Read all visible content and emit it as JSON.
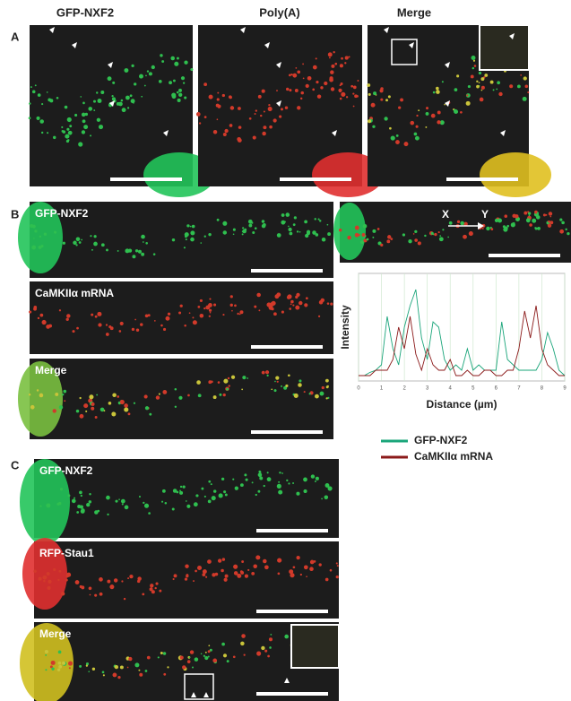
{
  "panels": [
    {
      "label": "A",
      "columns": [
        "GFP-NXF2",
        "Poly(A)",
        "Merge"
      ]
    },
    {
      "label": "B",
      "images": [
        "GFP-NXF2",
        "CaMKIIα mRNA",
        "Merge"
      ],
      "arrow_start": "X",
      "arrow_end": "Y",
      "chart_data": {
        "type": "line",
        "xlabel": "Distance (µm)",
        "ylabel": "Intensity",
        "x": [
          0,
          0.25,
          0.5,
          0.75,
          1,
          1.25,
          1.5,
          1.75,
          2,
          2.25,
          2.5,
          2.75,
          3,
          3.25,
          3.5,
          3.75,
          4,
          4.25,
          4.5,
          4.75,
          5,
          5.25,
          5.5,
          5.75,
          6,
          6.25,
          6.5,
          6.75,
          7,
          7.25,
          7.5,
          7.75,
          8,
          8.25,
          8.5,
          8.75,
          9
        ],
        "series": [
          {
            "name": "GFP-NXF2",
            "color": "#1aa57a",
            "values": [
              0.05,
              0.05,
              0.08,
              0.1,
              0.15,
              0.6,
              0.3,
              0.15,
              0.5,
              0.7,
              0.85,
              0.4,
              0.2,
              0.55,
              0.5,
              0.2,
              0.1,
              0.15,
              0.1,
              0.3,
              0.1,
              0.15,
              0.1,
              0.1,
              0.1,
              0.55,
              0.2,
              0.15,
              0.1,
              0.1,
              0.1,
              0.1,
              0.2,
              0.45,
              0.3,
              0.1,
              0.05
            ]
          },
          {
            "name": "CaMKIIα mRNA",
            "color": "#8b1a1a",
            "values": [
              0.05,
              0.05,
              0.05,
              0.1,
              0.1,
              0.1,
              0.2,
              0.5,
              0.3,
              0.6,
              0.25,
              0.1,
              0.3,
              0.15,
              0.1,
              0.1,
              0.2,
              0.05,
              0.05,
              0.1,
              0.05,
              0.05,
              0.1,
              0.1,
              0.05,
              0.05,
              0.1,
              0.1,
              0.3,
              0.65,
              0.4,
              0.7,
              0.3,
              0.15,
              0.1,
              0.05,
              0.05
            ]
          }
        ],
        "xlim": [
          0,
          9
        ],
        "xticks": [
          0,
          1,
          2,
          3,
          4,
          5,
          6,
          7,
          8,
          9
        ],
        "ylim": [
          0,
          1
        ],
        "grid": true
      }
    },
    {
      "label": "C",
      "images": [
        "GFP-NXF2",
        "RFP-Stau1",
        "Merge"
      ]
    }
  ]
}
